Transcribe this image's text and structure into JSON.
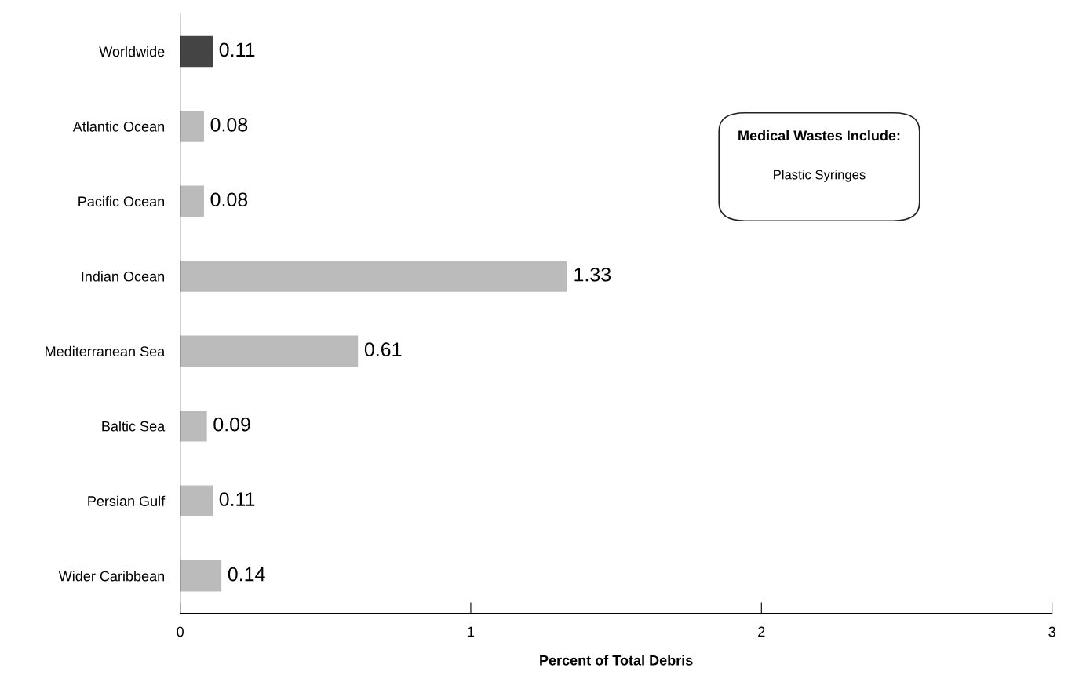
{
  "chart_data": {
    "type": "bar",
    "orientation": "horizontal",
    "xlabel": "Percent of Total Debris",
    "categories": [
      "Worldwide",
      "Atlantic Ocean",
      "Pacific Ocean",
      "Indian Ocean",
      "Mediterranean Sea",
      "Baltic Sea",
      "Persian Gulf",
      "Wider Caribbean"
    ],
    "values": [
      0.11,
      0.08,
      0.08,
      1.33,
      0.61,
      0.09,
      0.11,
      0.14
    ],
    "colors": [
      "#444444",
      "#bbbbbb",
      "#bbbbbb",
      "#bbbbbb",
      "#bbbbbb",
      "#bbbbbb",
      "#bbbbbb",
      "#bbbbbb"
    ],
    "xlim": [
      0,
      3
    ],
    "xticks": [
      0,
      1,
      2,
      3
    ],
    "grid": false,
    "data_labels": true,
    "annotations": [
      "Medical Wastes Include:",
      "Plastic Syringes"
    ]
  }
}
